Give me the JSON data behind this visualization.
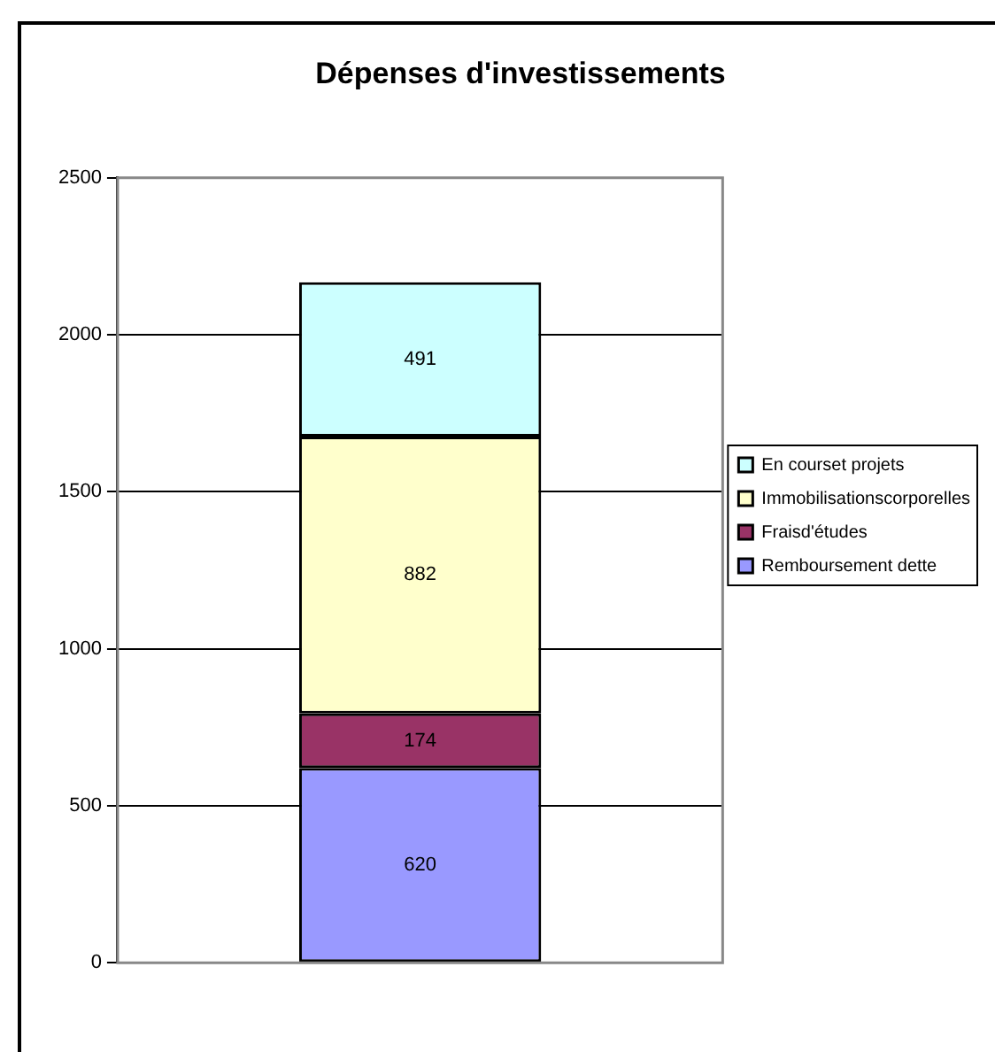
{
  "chart_data": {
    "type": "bar",
    "title": "Dépenses d'investissements",
    "categories": [
      null
    ],
    "stacked": true,
    "data_labels": true,
    "legend": "right",
    "grid": "y",
    "ylim": [
      0,
      2500
    ],
    "yticks": [
      0,
      500,
      1000,
      1500,
      2000,
      2500
    ],
    "series": [
      {
        "name": "Remboursement dette",
        "color": "#9999ff",
        "values": [
          620
        ]
      },
      {
        "name": "Fraisd'études",
        "color": "#993366",
        "values": [
          174
        ]
      },
      {
        "name": "Immobilisationscorporelles",
        "color": "#ffffcc",
        "values": [
          882
        ]
      },
      {
        "name": "En courset projets",
        "color": "#ccffff",
        "values": [
          491
        ]
      }
    ]
  }
}
